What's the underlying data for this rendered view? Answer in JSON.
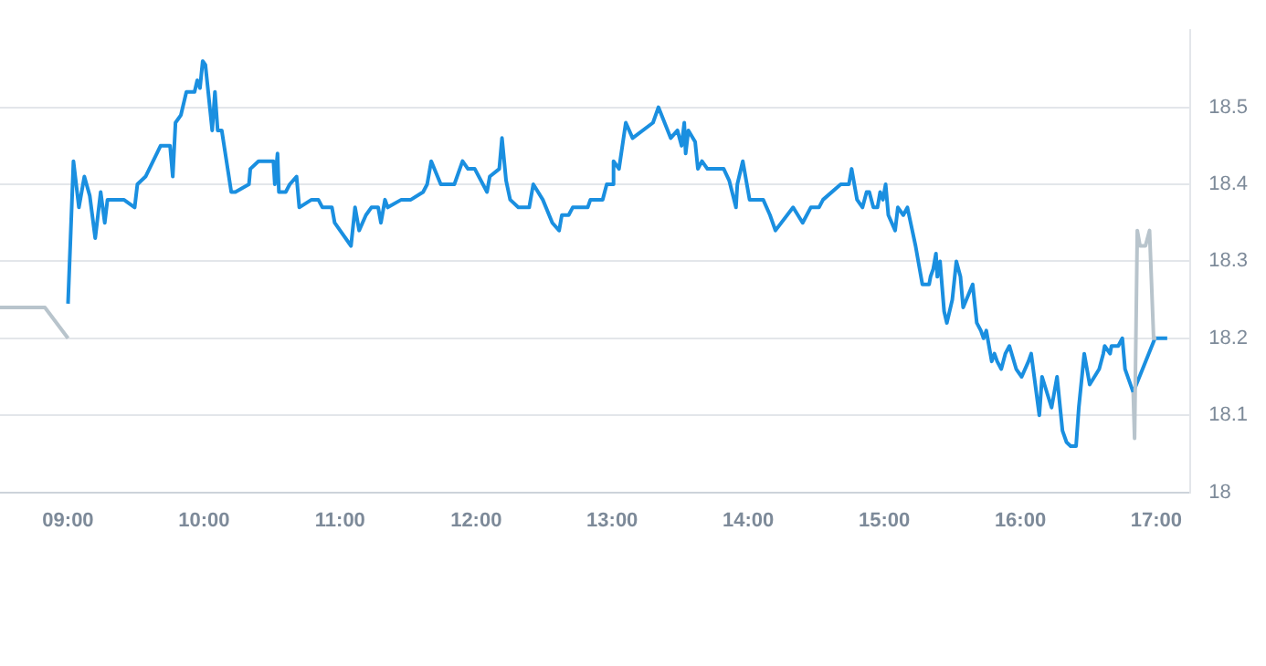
{
  "chart_data": {
    "type": "line",
    "xlim": [
      8.5,
      17.25
    ],
    "ylim": [
      18,
      18.6
    ],
    "xticks": [
      {
        "value": 9,
        "label": "09:00"
      },
      {
        "value": 10,
        "label": "10:00"
      },
      {
        "value": 11,
        "label": "11:00"
      },
      {
        "value": 12,
        "label": "12:00"
      },
      {
        "value": 13,
        "label": "13:00"
      },
      {
        "value": 14,
        "label": "14:00"
      },
      {
        "value": 15,
        "label": "15:00"
      },
      {
        "value": 16,
        "label": "16:00"
      },
      {
        "value": 17,
        "label": "17:00"
      }
    ],
    "yticks": [
      18,
      18.1,
      18.2,
      18.3,
      18.4,
      18.5
    ],
    "grid": "y",
    "legend": false,
    "marker": "none",
    "series": [
      {
        "color": "#b8c4cc",
        "x": [
          8.5,
          8.83,
          9.0
        ],
        "values": [
          18.24,
          18.24,
          18.2
        ]
      },
      {
        "color": "#b8c4cc",
        "x": [
          16.83,
          16.84,
          16.86,
          16.88,
          16.92,
          16.95,
          16.98,
          17.0
        ],
        "values": [
          18.13,
          18.07,
          18.34,
          18.32,
          18.32,
          18.34,
          18.2,
          18.2
        ]
      },
      {
        "color": "#1a8fe0",
        "x": [
          9.0,
          9.04,
          9.08,
          9.12,
          9.16,
          9.2,
          9.24,
          9.27,
          9.29,
          9.41,
          9.49,
          9.51,
          9.57,
          9.68,
          9.75,
          9.77,
          9.79,
          9.83,
          9.87,
          9.93,
          9.95,
          9.97,
          9.99,
          10.01,
          10.06,
          10.08,
          10.1,
          10.13,
          10.2,
          10.23,
          10.33,
          10.34,
          10.4,
          10.51,
          10.52,
          10.54,
          10.55,
          10.6,
          10.63,
          10.68,
          10.7,
          10.79,
          10.84,
          10.87,
          10.94,
          10.96,
          11.08,
          11.11,
          11.14,
          11.19,
          11.23,
          11.28,
          11.3,
          11.33,
          11.35,
          11.45,
          11.52,
          11.61,
          11.64,
          11.67,
          11.74,
          11.84,
          11.9,
          11.94,
          11.99,
          12.08,
          12.1,
          12.17,
          12.19,
          12.22,
          12.25,
          12.31,
          12.39,
          12.42,
          12.49,
          12.56,
          12.61,
          12.63,
          12.68,
          12.71,
          12.82,
          12.84,
          12.93,
          12.96,
          13.0,
          13.01,
          13.05,
          13.1,
          13.15,
          13.3,
          13.34,
          13.43,
          13.48,
          13.51,
          13.53,
          13.54,
          13.56,
          13.61,
          13.63,
          13.66,
          13.7,
          13.82,
          13.86,
          13.91,
          13.92,
          13.96,
          14.01,
          14.11,
          14.16,
          14.2,
          14.33,
          14.4,
          14.46,
          14.52,
          14.55,
          14.68,
          14.74,
          14.76,
          14.8,
          14.84,
          14.87,
          14.89,
          14.92,
          14.95,
          14.97,
          14.99,
          15.01,
          15.03,
          15.08,
          15.1,
          15.14,
          15.17,
          15.23,
          15.28,
          15.33,
          15.34,
          15.36,
          15.38,
          15.39,
          15.41,
          15.44,
          15.46,
          15.5,
          15.53,
          15.56,
          15.58,
          15.65,
          15.68,
          15.71,
          15.73,
          15.75,
          15.79,
          15.81,
          15.83,
          15.86,
          15.89,
          15.92,
          15.97,
          16.01,
          16.06,
          16.08,
          16.14,
          16.16,
          16.23,
          16.27,
          16.31,
          16.34,
          16.37,
          16.41,
          16.43,
          16.47,
          16.51,
          16.58,
          16.61,
          16.62,
          16.66,
          16.67,
          16.72,
          16.75,
          16.77,
          16.83,
          16.99,
          17.08
        ],
        "values": [
          18.245,
          18.43,
          18.37,
          18.41,
          18.385,
          18.33,
          18.39,
          18.35,
          18.38,
          18.38,
          18.37,
          18.4,
          18.41,
          18.45,
          18.45,
          18.41,
          18.48,
          18.49,
          18.52,
          18.52,
          18.535,
          18.525,
          18.56,
          18.555,
          18.47,
          18.52,
          18.47,
          18.47,
          18.39,
          18.39,
          18.4,
          18.42,
          18.43,
          18.43,
          18.4,
          18.44,
          18.39,
          18.39,
          18.4,
          18.41,
          18.37,
          18.38,
          18.38,
          18.37,
          18.37,
          18.35,
          18.32,
          18.37,
          18.34,
          18.36,
          18.37,
          18.37,
          18.35,
          18.38,
          18.37,
          18.38,
          18.38,
          18.39,
          18.4,
          18.43,
          18.4,
          18.4,
          18.43,
          18.42,
          18.42,
          18.39,
          18.41,
          18.42,
          18.46,
          18.405,
          18.38,
          18.37,
          18.37,
          18.4,
          18.38,
          18.35,
          18.34,
          18.36,
          18.36,
          18.37,
          18.37,
          18.38,
          18.38,
          18.4,
          18.4,
          18.43,
          18.42,
          18.48,
          18.46,
          18.48,
          18.5,
          18.46,
          18.47,
          18.45,
          18.48,
          18.44,
          18.47,
          18.455,
          18.42,
          18.43,
          18.42,
          18.42,
          18.405,
          18.37,
          18.4,
          18.43,
          18.38,
          18.38,
          18.36,
          18.34,
          18.37,
          18.35,
          18.37,
          18.37,
          18.38,
          18.4,
          18.4,
          18.42,
          18.38,
          18.37,
          18.39,
          18.39,
          18.37,
          18.37,
          18.39,
          18.38,
          18.4,
          18.36,
          18.34,
          18.37,
          18.36,
          18.37,
          18.32,
          18.27,
          18.27,
          18.28,
          18.29,
          18.31,
          18.28,
          18.3,
          18.235,
          18.22,
          18.25,
          18.3,
          18.28,
          18.24,
          18.27,
          18.22,
          18.21,
          18.2,
          18.21,
          18.17,
          18.18,
          18.17,
          18.16,
          18.18,
          18.19,
          18.16,
          18.15,
          18.17,
          18.18,
          18.1,
          18.15,
          18.11,
          18.15,
          18.08,
          18.065,
          18.06,
          18.06,
          18.11,
          18.18,
          18.14,
          18.16,
          18.18,
          18.19,
          18.18,
          18.19,
          18.19,
          18.2,
          18.16,
          18.13,
          18.2,
          18.2
        ]
      }
    ]
  }
}
